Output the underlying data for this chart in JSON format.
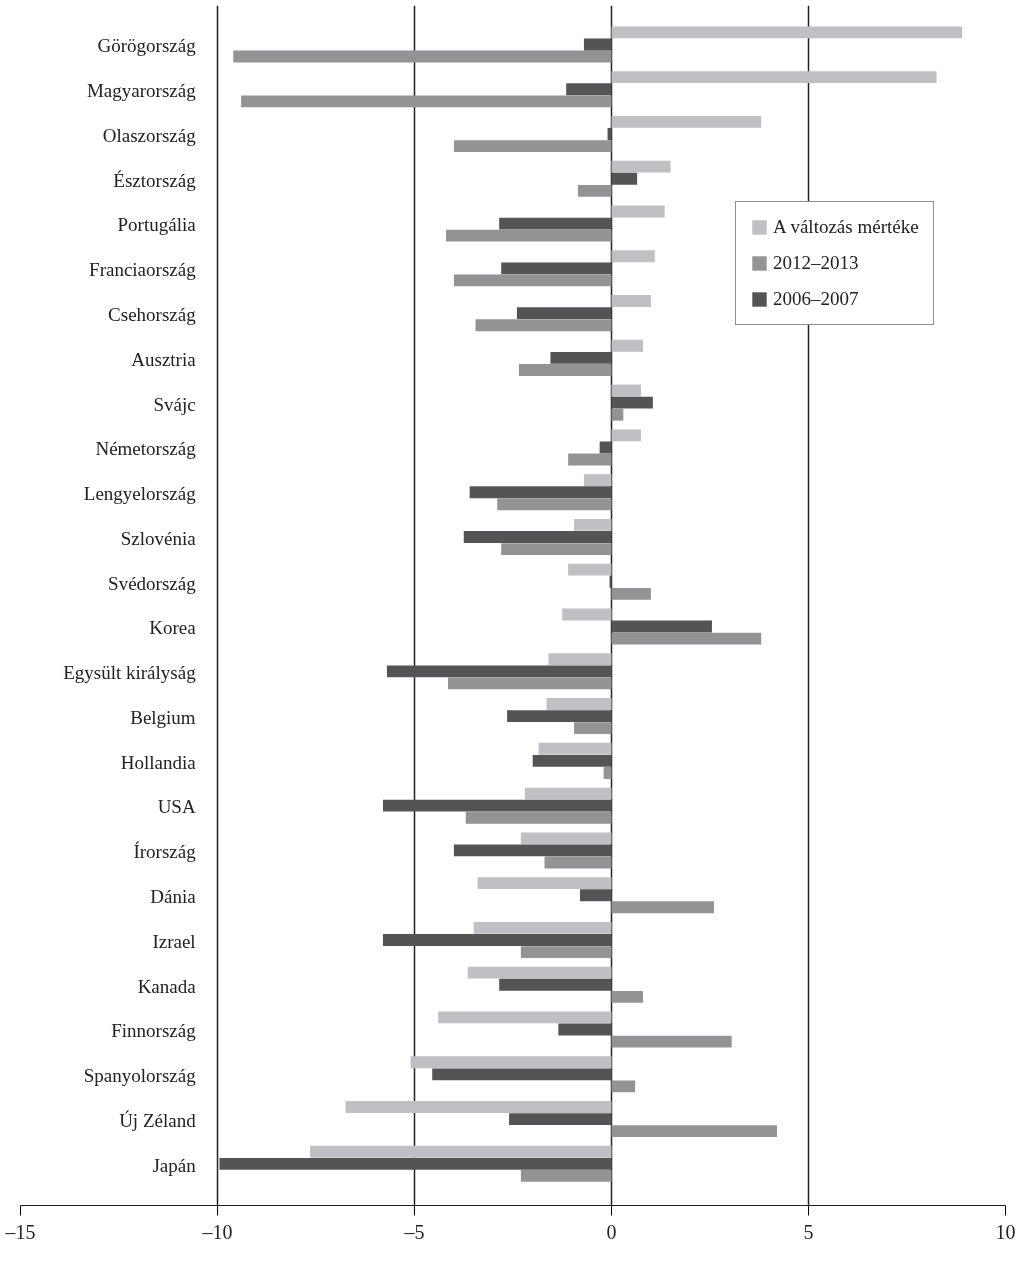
{
  "chart_data": {
    "type": "bar",
    "orientation": "horizontal",
    "categories": [
      "Görögország",
      "Magyarország",
      "Olaszország",
      "Észtország",
      "Portugália",
      "Franciaország",
      "Csehország",
      "Ausztria",
      "Svájc",
      "Németország",
      "Lengyelország",
      "Szlovénia",
      "Svédország",
      "Korea",
      "Egysült királyság",
      "Belgium",
      "Hollandia",
      "USA",
      "Írország",
      "Dánia",
      "Izrael",
      "Kanada",
      "Finnország",
      "Spanyolország",
      "Új Zéland",
      "Japán"
    ],
    "series": [
      {
        "name": "A változás mértéke",
        "color": "#c0c0c4",
        "values": [
          8.9,
          8.25,
          3.8,
          1.5,
          1.35,
          1.1,
          1.0,
          0.8,
          0.75,
          0.75,
          -0.7,
          -0.95,
          -1.1,
          -1.25,
          -1.6,
          -1.65,
          -1.85,
          -2.2,
          -2.3,
          -3.4,
          -3.5,
          -3.65,
          -4.4,
          -5.1,
          -6.75,
          -7.65
        ]
      },
      {
        "name": "2012–2013",
        "color": "#939396",
        "values": [
          -9.6,
          -9.4,
          -4.0,
          -0.85,
          -4.2,
          -4.0,
          -3.45,
          -2.35,
          0.3,
          -1.1,
          -2.9,
          -2.8,
          1.0,
          3.8,
          -4.15,
          -0.95,
          -0.2,
          -3.7,
          -1.7,
          2.6,
          -2.3,
          0.8,
          3.05,
          0.6,
          4.2,
          -2.3
        ]
      },
      {
        "name": "2006–2007",
        "color": "#545457",
        "values": [
          -0.7,
          -1.15,
          -0.1,
          0.65,
          -2.85,
          -2.8,
          -2.4,
          -1.55,
          1.05,
          -0.3,
          -3.6,
          -3.75,
          -0.05,
          2.55,
          -5.7,
          -2.65,
          -2.0,
          -5.8,
          -4.0,
          -0.8,
          -5.8,
          -2.85,
          -1.35,
          -4.55,
          -2.6,
          -9.95
        ]
      }
    ],
    "xlim": [
      -15,
      10
    ],
    "xticks": [
      {
        "value": -15,
        "label": "–15"
      },
      {
        "value": -10,
        "label": "–10"
      },
      {
        "value": -5,
        "label": "–5"
      },
      0,
      5,
      10
    ],
    "grid": "x",
    "legend": "top right"
  }
}
